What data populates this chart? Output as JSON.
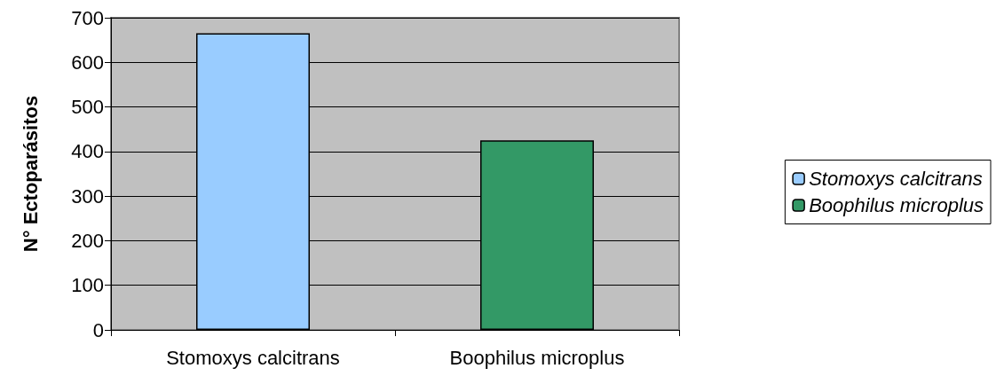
{
  "chart_data": {
    "type": "bar",
    "ylabel": "N° Ectoparásitos",
    "categories": [
      "Stomoxys calcitrans",
      "Boophilus microplus"
    ],
    "series": [
      {
        "name": "Stomoxys calcitrans",
        "color": "#99ccff",
        "values": [
          665,
          null
        ]
      },
      {
        "name": "Boophilus microplus",
        "color": "#339966",
        "values": [
          null,
          425
        ]
      }
    ],
    "ylim": [
      0,
      700
    ],
    "yticks": [
      0,
      100,
      200,
      300,
      400,
      500,
      600,
      700
    ],
    "grid": "y",
    "legend": "right"
  }
}
